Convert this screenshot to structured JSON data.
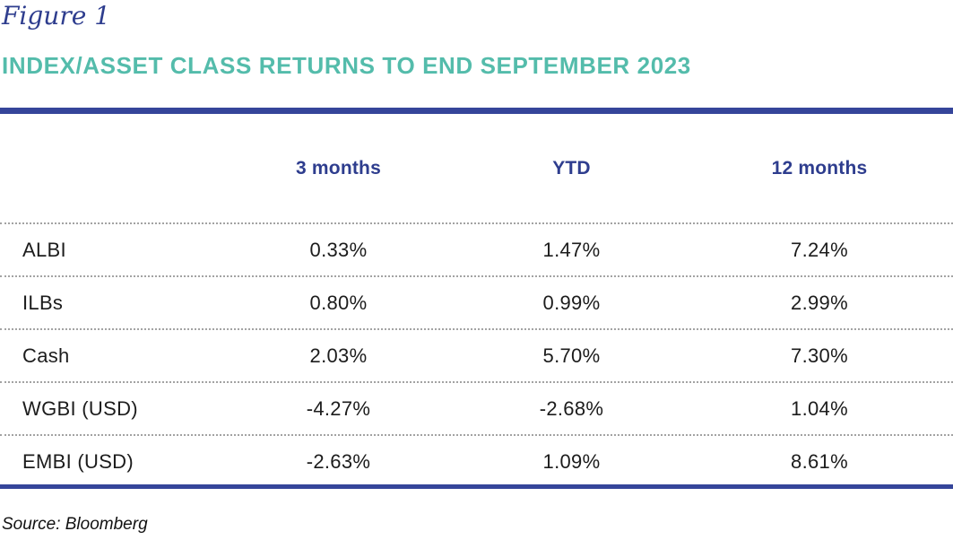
{
  "figure": {
    "label": "Figure 1",
    "title": "INDEX/ASSET CLASS RETURNS TO END SEPTEMBER 2023",
    "source": "Source: Bloomberg"
  },
  "colors": {
    "navy_text": "#2e3d8e",
    "navy_rule": "#35459a",
    "teal_title": "#54bcab",
    "body_text": "#1c1c1c",
    "dotted_divider": "#a3a3a3",
    "background": "#ffffff"
  },
  "table": {
    "columns": [
      "",
      "3 months",
      "YTD",
      "12 months"
    ],
    "rows": [
      {
        "label": "ALBI",
        "values": [
          "0.33%",
          "1.47%",
          "7.24%"
        ]
      },
      {
        "label": "ILBs",
        "values": [
          "0.80%",
          "0.99%",
          "2.99%"
        ]
      },
      {
        "label": "Cash",
        "values": [
          "2.03%",
          "5.70%",
          "7.30%"
        ]
      },
      {
        "label": "WGBI (USD)",
        "values": [
          "-4.27%",
          "-2.68%",
          "1.04%"
        ]
      },
      {
        "label": "EMBI (USD)",
        "values": [
          "-2.63%",
          "1.09%",
          "8.61%"
        ]
      }
    ]
  },
  "chart_data": {
    "type": "table",
    "title": "INDEX/ASSET CLASS RETURNS TO END SEPTEMBER 2023",
    "categories": [
      "3 months",
      "YTD",
      "12 months"
    ],
    "series": [
      {
        "name": "ALBI",
        "values": [
          0.33,
          1.47,
          7.24
        ]
      },
      {
        "name": "ILBs",
        "values": [
          0.8,
          0.99,
          2.99
        ]
      },
      {
        "name": "Cash",
        "values": [
          2.03,
          5.7,
          7.3
        ]
      },
      {
        "name": "WGBI (USD)",
        "values": [
          -4.27,
          -2.68,
          1.04
        ]
      },
      {
        "name": "EMBI (USD)",
        "values": [
          -2.63,
          1.09,
          8.61
        ]
      }
    ],
    "unit": "%",
    "source": "Bloomberg"
  }
}
